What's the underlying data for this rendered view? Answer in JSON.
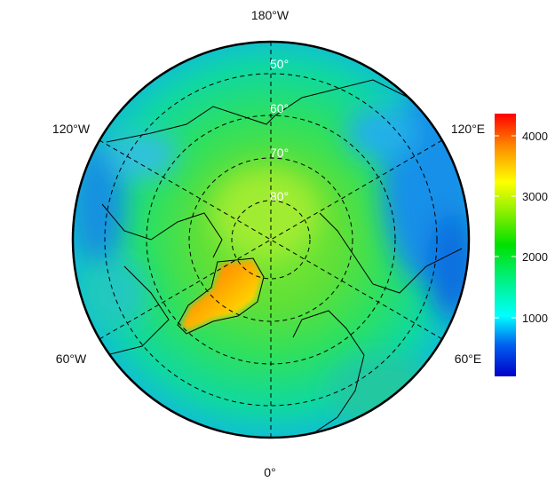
{
  "map": {
    "projection": "north polar azimuthal",
    "longitude_labels": {
      "top": "180°W",
      "upper_left": "120°W",
      "upper_right": "120°E",
      "lower_left": "60°W",
      "lower_right": "60°E",
      "bottom": "0°"
    },
    "latitude_labels": [
      "50°",
      "60°",
      "70°",
      "80°"
    ],
    "colorbar": {
      "ticks": [
        "1000",
        "2000",
        "3000",
        "4000"
      ],
      "range": [
        0,
        4370
      ],
      "colors": [
        "#0000c8",
        "#0080ff",
        "#00ffff",
        "#00e65a",
        "#00e000",
        "#aaf000",
        "#ffff00",
        "#ffa000",
        "#ff0000"
      ]
    },
    "colors": {
      "high": "#ff3000",
      "mid": "#3ce040",
      "low": "#1070e0"
    }
  }
}
